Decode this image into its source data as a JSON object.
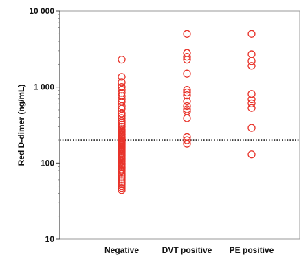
{
  "chart_data": {
    "type": "scatter",
    "title": "",
    "xlabel": "",
    "ylabel": "Red D-dimer (ng/mL)",
    "yscale": "log",
    "ylim": [
      10,
      10000
    ],
    "y_ticks": [
      {
        "value": 10,
        "label": "10"
      },
      {
        "value": 100,
        "label": "100"
      },
      {
        "value": 1000,
        "label": "1 000"
      },
      {
        "value": 10000,
        "label": "10 000"
      }
    ],
    "categories": [
      "Negative",
      "DVT positive",
      "PE positive"
    ],
    "cutoff": 200,
    "grid": false,
    "marker": "open-circle",
    "marker_color": "#e8332a",
    "series": [
      {
        "category": "Negative",
        "values": [
          2300,
          1360,
          1150,
          1000,
          920,
          840,
          760,
          690,
          640,
          560,
          520,
          450,
          420,
          390,
          360,
          340,
          320,
          300,
          280,
          270,
          260,
          250,
          240,
          235,
          225,
          215,
          210,
          200,
          195,
          190,
          185,
          180,
          175,
          170,
          165,
          160,
          155,
          150,
          145,
          140,
          135,
          130,
          125,
          120,
          115,
          110,
          105,
          100,
          96,
          92,
          88,
          84,
          80,
          76,
          72,
          68,
          64,
          60,
          56,
          53,
          50,
          47,
          44
        ]
      },
      {
        "category": "DVT positive",
        "values": [
          5000,
          2800,
          2500,
          2300,
          1500,
          920,
          850,
          780,
          650,
          560,
          510,
          480,
          390,
          220,
          200,
          180
        ]
      },
      {
        "category": "PE positive",
        "values": [
          5000,
          2700,
          2200,
          1900,
          810,
          690,
          610,
          530,
          290,
          130
        ]
      }
    ]
  }
}
